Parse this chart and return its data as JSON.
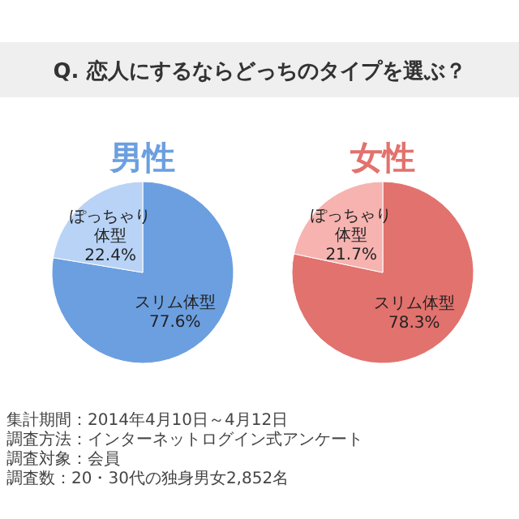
{
  "chart_data": [
    {
      "type": "other",
      "title": "Q. 恋人にするならどっちのタイプを選ぶ？"
    },
    {
      "type": "pie",
      "title": "男性",
      "categories": [
        "スリム体型",
        "ぽっちゃり体型"
      ],
      "values": [
        77.6,
        22.4
      ],
      "colors": [
        "#6b9fe0",
        "#b8d3f6"
      ],
      "value_labels": [
        "77.6%",
        "22.4%"
      ]
    },
    {
      "type": "pie",
      "title": "女性",
      "categories": [
        "スリム体型",
        "ぽっちゃり体型"
      ],
      "values": [
        78.3,
        21.7
      ],
      "colors": [
        "#e2726d",
        "#f6b3b0"
      ],
      "value_labels": [
        "78.3%",
        "21.7%"
      ]
    },
    {
      "type": "other",
      "annotations": [
        "集計期間：2014年4月10日～4月12日",
        "調査方法：インターネットログイン式アンケート",
        "調査対象：会員",
        "調査数：20・30代の独身男女2,852名"
      ]
    }
  ]
}
